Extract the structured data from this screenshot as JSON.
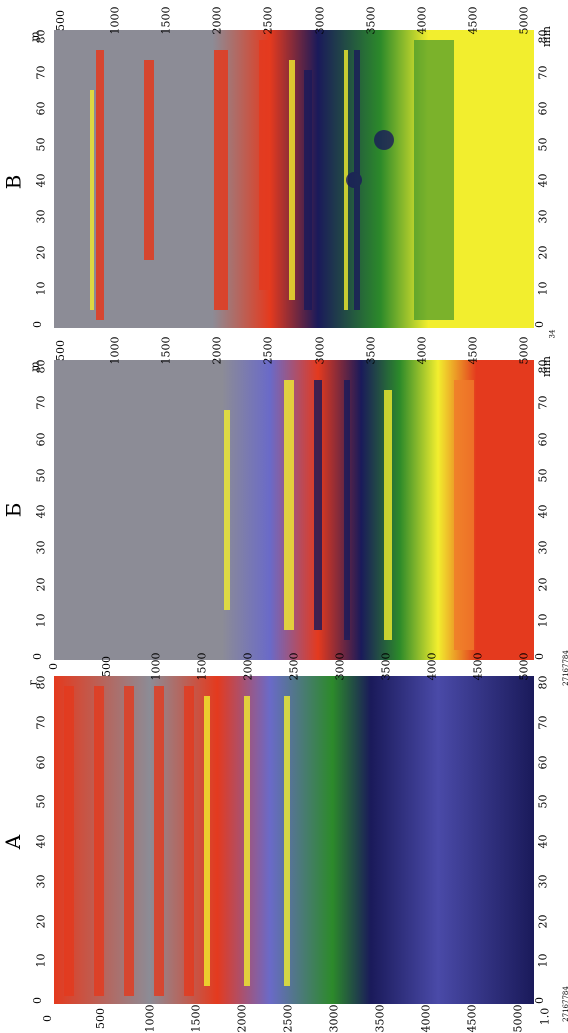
{
  "panels": [
    {
      "label": "A",
      "depth_ticks": [
        "0",
        "500",
        "1000",
        "1500",
        "2000",
        "2500",
        "3000",
        "3500",
        "4000",
        "4500",
        "5000"
      ],
      "depth_ticks_outer": [
        "0",
        "500",
        "1000",
        "1500",
        "2000",
        "2500",
        "3000",
        "3500",
        "4000",
        "4500",
        "5000"
      ],
      "distance_ticks": [
        "0",
        "10",
        "20",
        "30",
        "40",
        "50",
        "60",
        "70",
        "80"
      ],
      "distance_unit": "г",
      "bottom_unit": "1.0",
      "code": "27167784"
    },
    {
      "label": "Б",
      "depth_ticks": [
        "500",
        "1000",
        "1500",
        "2000",
        "2500",
        "3000",
        "3500",
        "4000",
        "4500",
        "5000"
      ],
      "distance_ticks": [
        "0",
        "10",
        "20",
        "30",
        "40",
        "50",
        "60",
        "70",
        "80"
      ],
      "distance_unit": "m",
      "bottom_unit": "mm",
      "code": "27167784"
    },
    {
      "label": "В",
      "depth_ticks": [
        "500",
        "1000",
        "1500",
        "2000",
        "2500",
        "3000",
        "3500",
        "4000",
        "4500",
        "5000"
      ],
      "distance_ticks": [
        "0",
        "10",
        "20",
        "30",
        "40",
        "50",
        "60",
        "70",
        "80"
      ],
      "distance_unit": "m",
      "bottom_unit": "mm",
      "code": "34"
    }
  ],
  "colors": {
    "gray": "#8c8c96",
    "red": "#e43a1e",
    "yellow": "#f2ee2e",
    "green": "#2c8a2a",
    "blue": "#6a6ac8",
    "navy": "#1a1a5a",
    "orange": "#f07a2a"
  }
}
